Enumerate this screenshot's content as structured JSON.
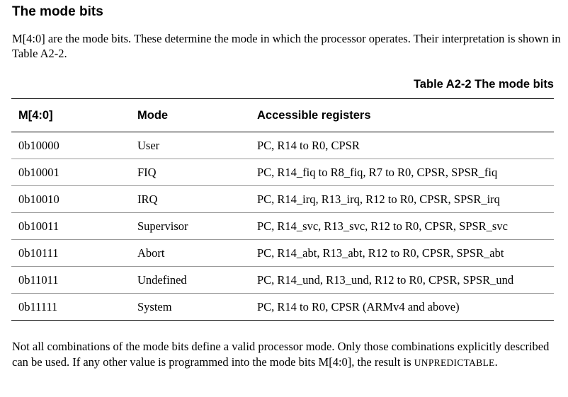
{
  "section": {
    "title": "The mode bits",
    "intro": "M[4:0] are the mode bits. These determine the mode in which the processor operates. Their interpretation is shown in Table A2-2."
  },
  "table": {
    "caption": "Table A2-2 The mode bits",
    "headers": [
      "M[4:0]",
      "Mode",
      "Accessible registers"
    ],
    "rows": [
      [
        "0b10000",
        "User",
        "PC, R14 to R0, CPSR"
      ],
      [
        "0b10001",
        "FIQ",
        "PC, R14_fiq to R8_fiq, R7 to R0, CPSR, SPSR_fiq"
      ],
      [
        "0b10010",
        "IRQ",
        "PC, R14_irq, R13_irq, R12 to R0, CPSR, SPSR_irq"
      ],
      [
        "0b10011",
        "Supervisor",
        "PC, R14_svc, R13_svc, R12 to R0, CPSR, SPSR_svc"
      ],
      [
        "0b10111",
        "Abort",
        "PC, R14_abt, R13_abt, R12 to R0, CPSR, SPSR_abt"
      ],
      [
        "0b11011",
        "Undefined",
        "PC, R14_und, R13_und, R12 to R0, CPSR, SPSR_und"
      ],
      [
        "0b11111",
        "System",
        "PC, R14 to R0, CPSR (ARMv4 and above)"
      ]
    ]
  },
  "footer": {
    "text": "Not all combinations of the mode bits define a valid processor mode. Only those combinations explicitly described can be used. If any other value is programmed into the mode bits M[4:0], the result is",
    "unpredictable": "UNPREDICTABLE",
    "end": "."
  }
}
